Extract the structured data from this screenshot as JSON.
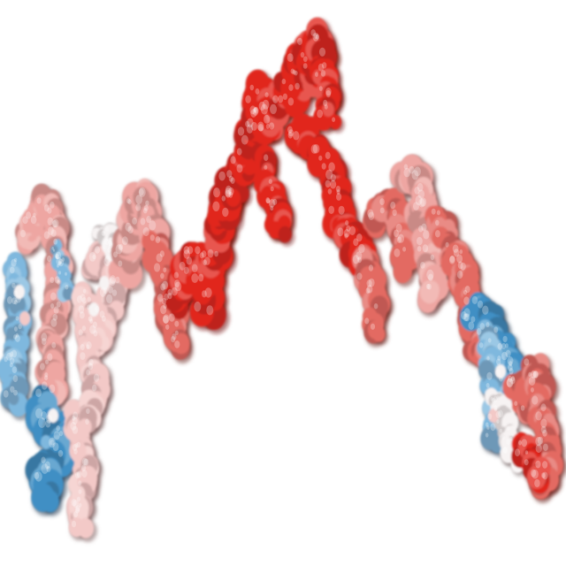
{
  "image": {
    "subject": "protein surface",
    "background_color": "#ffffff",
    "palette": {
      "red": "#e1271e",
      "dark_red": "#a8150f",
      "light_red": "#e36a62",
      "salmon": "#eea6a2",
      "pink": "#f3c9c7",
      "white": "#f7f3f3",
      "light_blue": "#7fb8de",
      "blue": "#3f8fc4",
      "dark_blue": "#25577a"
    }
  }
}
